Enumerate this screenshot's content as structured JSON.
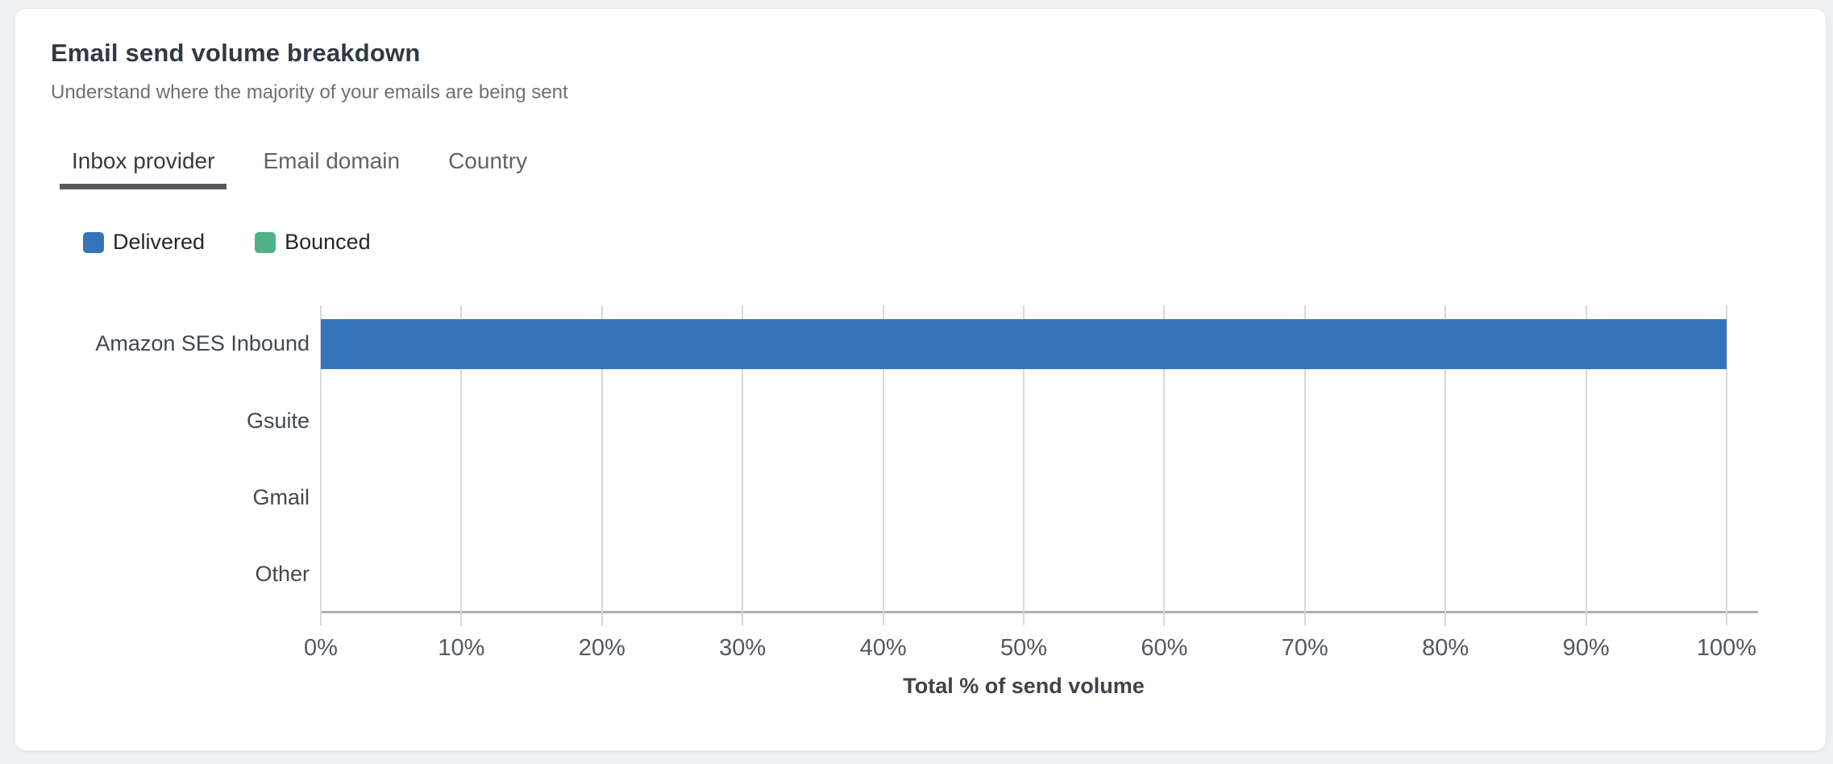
{
  "card": {
    "title": "Email send volume breakdown",
    "subtitle": "Understand where the majority of your emails are being sent"
  },
  "tabs": {
    "items": [
      {
        "label": "Inbox provider",
        "active": true
      },
      {
        "label": "Email domain",
        "active": false
      },
      {
        "label": "Country",
        "active": false
      }
    ]
  },
  "chart_data": {
    "type": "bar",
    "orientation": "horizontal",
    "categories": [
      "Amazon SES Inbound",
      "Gsuite",
      "Gmail",
      "Other"
    ],
    "series": [
      {
        "name": "Delivered",
        "color": "#3574ba",
        "values": [
          100,
          0,
          0,
          0
        ]
      },
      {
        "name": "Bounced",
        "color": "#4fb287",
        "values": [
          0,
          0,
          0,
          0
        ]
      }
    ],
    "xlabel": "Total % of send volume",
    "xlim": [
      0,
      100
    ],
    "x_ticks": [
      "0%",
      "10%",
      "20%",
      "30%",
      "40%",
      "50%",
      "60%",
      "70%",
      "80%",
      "90%",
      "100%"
    ],
    "grid": true,
    "legend_position": "top-left"
  }
}
